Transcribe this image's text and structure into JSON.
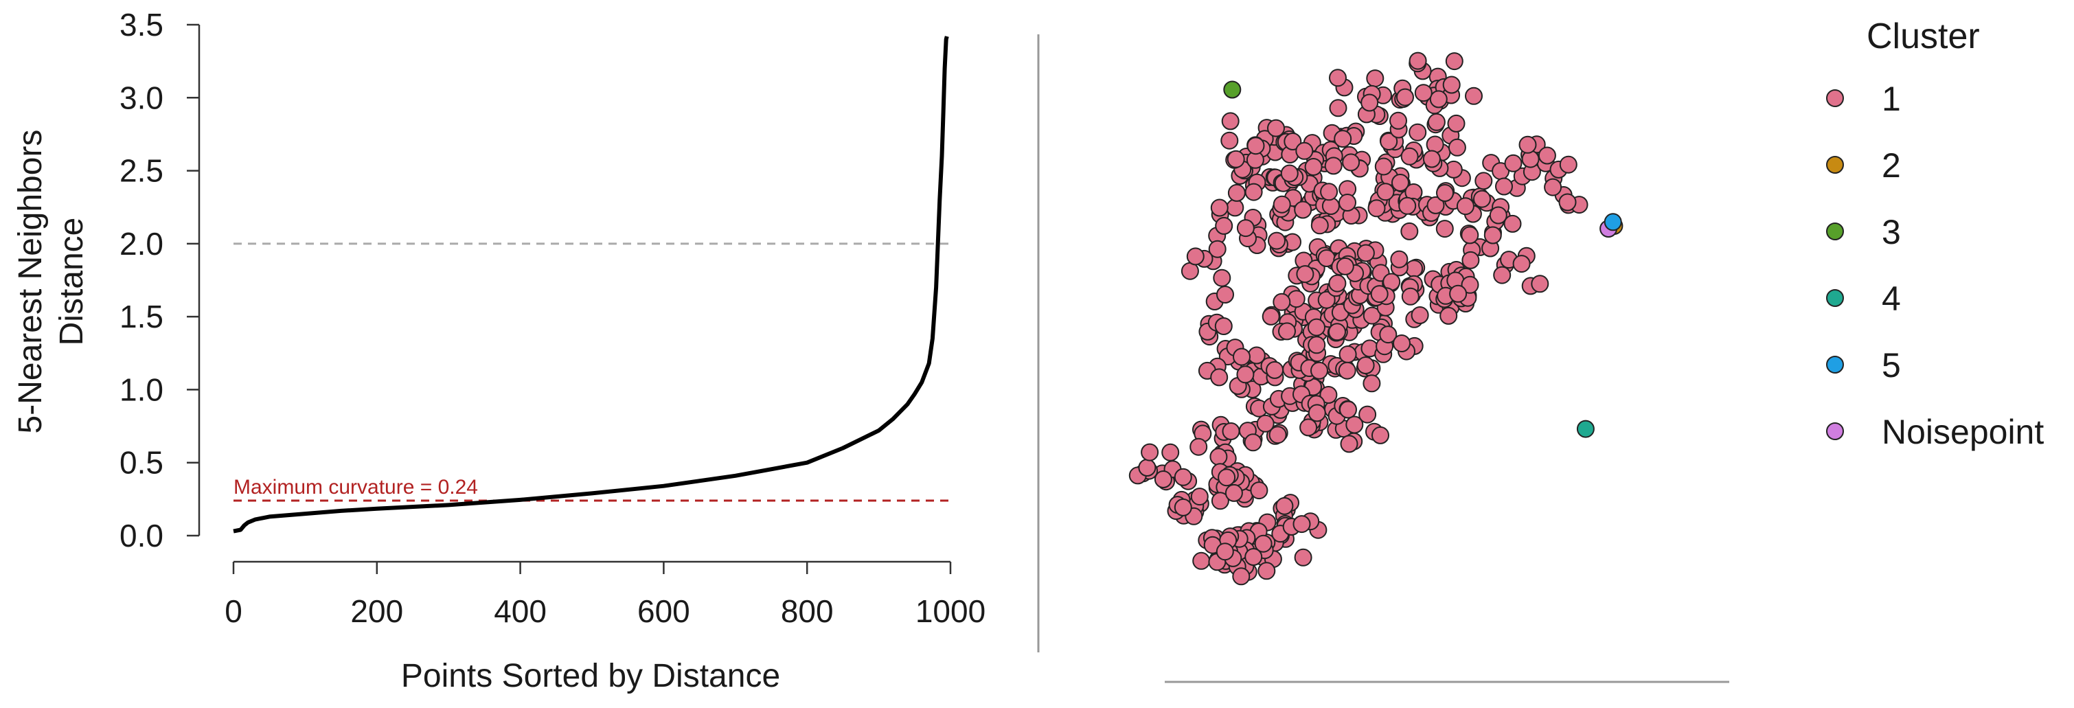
{
  "chart_data": [
    {
      "type": "line",
      "xlabel": "Points Sorted by Distance",
      "ylabel_lines": [
        "5-Nearest Neighbors",
        "Distance"
      ],
      "xlim": [
        0,
        1000
      ],
      "ylim": [
        0,
        3.5
      ],
      "x_ticks": [
        "0",
        "200",
        "400",
        "600",
        "800",
        "1000"
      ],
      "y_ticks": [
        "0.0",
        "0.5",
        "1.0",
        "1.5",
        "2.0",
        "2.5",
        "3.0",
        "3.5"
      ],
      "series": [
        {
          "x": [
            0,
            10,
            15,
            20,
            30,
            50,
            100,
            150,
            200,
            300,
            400,
            500,
            600,
            700,
            800,
            850,
            900,
            920,
            940,
            950,
            960,
            970,
            975,
            980,
            985,
            988,
            990,
            992,
            994,
            995
          ],
          "y": [
            0.03,
            0.04,
            0.07,
            0.09,
            0.11,
            0.13,
            0.15,
            0.17,
            0.185,
            0.21,
            0.245,
            0.29,
            0.34,
            0.41,
            0.5,
            0.6,
            0.72,
            0.8,
            0.9,
            0.97,
            1.05,
            1.18,
            1.35,
            1.7,
            2.3,
            2.6,
            2.9,
            3.2,
            3.4,
            3.42
          ]
        }
      ],
      "reference_lines": [
        {
          "y": 2.0,
          "style": "dashed",
          "color": "#aaaaaa"
        },
        {
          "y": 0.24,
          "style": "dashed",
          "color": "#b22222"
        }
      ],
      "annotation": {
        "text": "Maximum curvature = 0.24",
        "x": 0,
        "y": 0.24
      },
      "grid": false
    },
    {
      "type": "scatter",
      "legend_title": "Cluster",
      "legend_placement": "right",
      "legend": [
        {
          "label": "1",
          "color": "#e0728c"
        },
        {
          "label": "2",
          "color": "#c78a12"
        },
        {
          "label": "3",
          "color": "#57a02a"
        },
        {
          "label": "4",
          "color": "#1fa990"
        },
        {
          "label": "5",
          "color": "#1f9fe4"
        },
        {
          "label": "Noisepoint",
          "color": "#d07ee0"
        }
      ],
      "outliers": [
        {
          "cluster": "3",
          "x": 0.21,
          "y": 0.95
        },
        {
          "cluster": "4",
          "x": 0.83,
          "y": 0.34
        },
        {
          "cluster": "2",
          "x": 0.88,
          "y": 0.705
        },
        {
          "cluster": "Noisepoint",
          "x": 0.87,
          "y": 0.7
        },
        {
          "cluster": "5",
          "x": 0.878,
          "y": 0.712
        }
      ],
      "cluster1_anchors": [
        [
          0.18,
          0.31,
          11
        ],
        [
          0.07,
          0.27,
          10
        ],
        [
          0.13,
          0.22,
          14
        ],
        [
          0.22,
          0.23,
          22
        ],
        [
          0.29,
          0.17,
          12
        ],
        [
          0.25,
          0.12,
          30
        ],
        [
          0.19,
          0.11,
          18
        ],
        [
          0.33,
          0.14,
          6
        ],
        [
          0.27,
          0.35,
          14
        ],
        [
          0.24,
          0.44,
          14
        ],
        [
          0.2,
          0.47,
          8
        ],
        [
          0.32,
          0.42,
          20
        ],
        [
          0.38,
          0.37,
          14
        ],
        [
          0.36,
          0.48,
          16
        ],
        [
          0.42,
          0.45,
          12
        ],
        [
          0.44,
          0.35,
          8
        ],
        [
          0.3,
          0.55,
          14
        ],
        [
          0.39,
          0.55,
          20
        ],
        [
          0.45,
          0.55,
          14
        ],
        [
          0.5,
          0.5,
          8
        ],
        [
          0.36,
          0.63,
          20
        ],
        [
          0.43,
          0.63,
          18
        ],
        [
          0.5,
          0.61,
          14
        ],
        [
          0.56,
          0.58,
          14
        ],
        [
          0.62,
          0.6,
          14
        ],
        [
          0.66,
          0.66,
          8
        ],
        [
          0.72,
          0.63,
          6
        ],
        [
          0.29,
          0.7,
          12
        ],
        [
          0.22,
          0.72,
          8
        ],
        [
          0.25,
          0.8,
          16
        ],
        [
          0.32,
          0.77,
          14
        ],
        [
          0.4,
          0.74,
          18
        ],
        [
          0.47,
          0.76,
          18
        ],
        [
          0.55,
          0.73,
          16
        ],
        [
          0.62,
          0.76,
          10
        ],
        [
          0.67,
          0.72,
          8
        ],
        [
          0.28,
          0.86,
          10
        ],
        [
          0.34,
          0.83,
          12
        ],
        [
          0.42,
          0.84,
          14
        ],
        [
          0.5,
          0.84,
          12
        ],
        [
          0.57,
          0.84,
          8
        ],
        [
          0.47,
          0.91,
          8
        ],
        [
          0.54,
          0.95,
          8
        ],
        [
          0.6,
          0.92,
          8
        ],
        [
          0.7,
          0.81,
          8
        ],
        [
          0.76,
          0.82,
          8
        ],
        [
          0.79,
          0.78,
          6
        ],
        [
          0.16,
          0.63,
          6
        ],
        [
          0.17,
          0.55,
          6
        ],
        [
          0.43,
          0.95,
          6
        ],
        [
          0.57,
          0.98,
          6
        ],
        [
          0.24,
          0.86,
          6
        ]
      ]
    }
  ]
}
